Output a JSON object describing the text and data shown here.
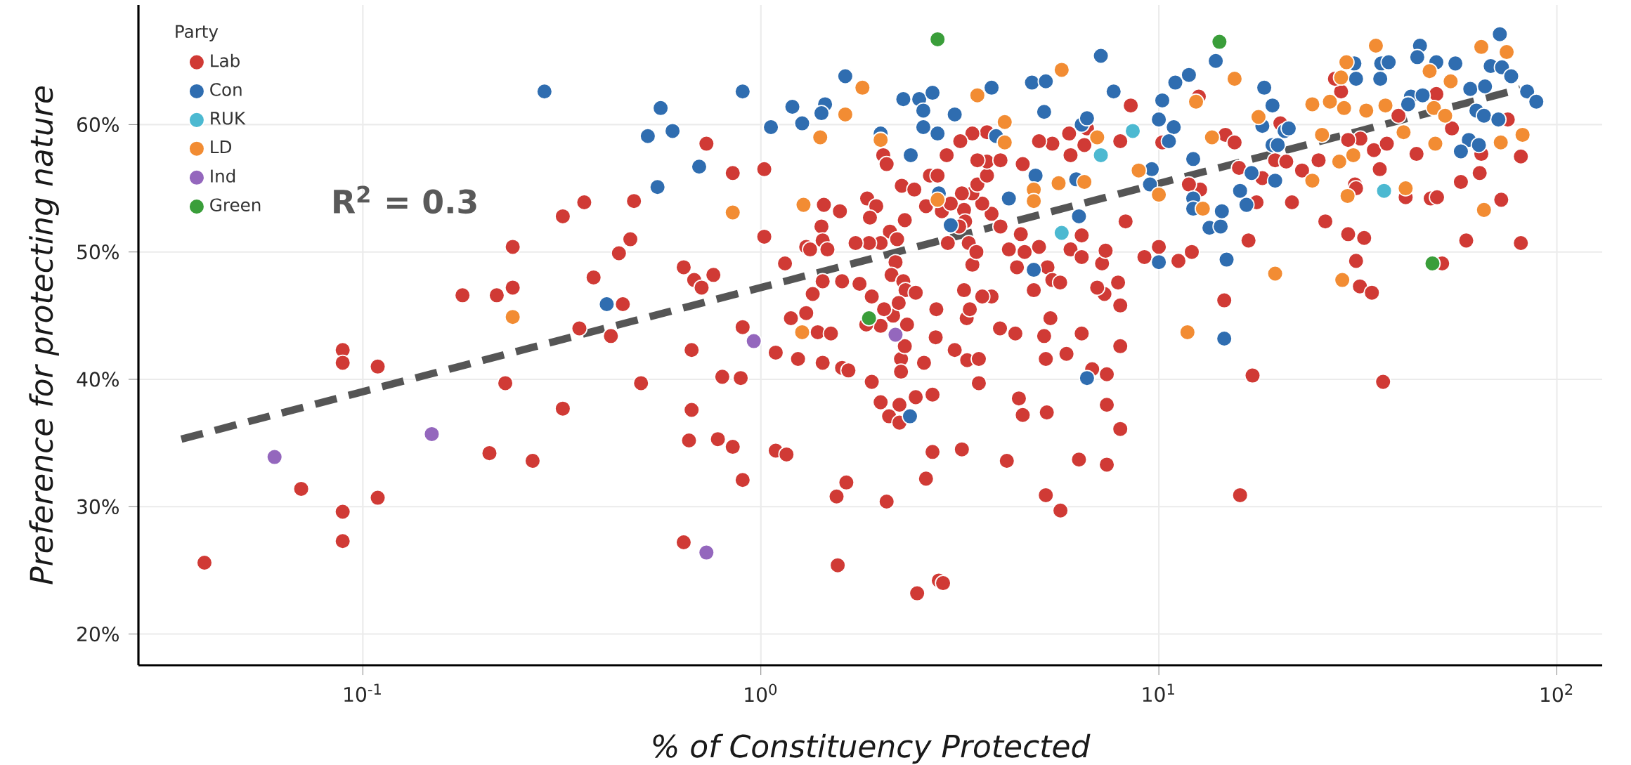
{
  "chart_data": {
    "type": "scatter",
    "xlabel": "% of Constituency Protected",
    "ylabel": "Preference for protecting nature",
    "legend_title": "Party",
    "annotations": [
      "R$^{2}$ = 0.3"
    ],
    "log": "x",
    "grid": true,
    "legend": "top left",
    "marker": "circle",
    "xlim": [
      0.0273,
      130
    ],
    "ylim": [
      17.55,
      69.4
    ],
    "xticks": [
      {
        "value": 0.1,
        "label": "10$^{-1}$"
      },
      {
        "value": 1,
        "label": "10$^{0}$"
      },
      {
        "value": 10,
        "label": "10$^{1}$"
      },
      {
        "value": 100,
        "label": "10$^{2}$"
      }
    ],
    "yticks": [
      {
        "value": 20,
        "label": "20%"
      },
      {
        "value": 30,
        "label": "30%"
      },
      {
        "value": 40,
        "label": "40%"
      },
      {
        "value": 50,
        "label": "50%"
      },
      {
        "value": 60,
        "label": "60%"
      }
    ],
    "series": [
      {
        "name": "Lab",
        "color": "#d03a35",
        "x": [
          0.04,
          0.089,
          0.089,
          0.109,
          0.07,
          0.089,
          0.089,
          0.109,
          0.178,
          0.217,
          0.238,
          0.238,
          0.228,
          0.208,
          0.267,
          0.318,
          0.318,
          0.36,
          0.73,
          0.85,
          1.02,
          0.48,
          0.47,
          0.44,
          0.38,
          0.45,
          0.35,
          0.42,
          0.64,
          0.68,
          0.71,
          0.76,
          1.02,
          1.15,
          0.9,
          0.67,
          0.5,
          0.8,
          0.89,
          0.67,
          0.66,
          0.78,
          0.85,
          0.9,
          1.09,
          1.16,
          0.64,
          1.09,
          1.24,
          1.43,
          1.6,
          1.66,
          1.9,
          2.0,
          2.23,
          2.1,
          2.23,
          2.45,
          2.7,
          2.57,
          2.25,
          2.25,
          2.3,
          2.33,
          2.15,
          2.0,
          1.84,
          1.55,
          1.64,
          2.07,
          1.56,
          2.47,
          2.8,
          2.87,
          2.6,
          2.7,
          3.2,
          4.15,
          5.2,
          5.66,
          6.3,
          7.4,
          4.45,
          4.55,
          5.23,
          5.2,
          5.86,
          6.4,
          6.8,
          7.4,
          7.4,
          8.0,
          8.0,
          8.0,
          7.9,
          7.3,
          7.0,
          7.2,
          7.35,
          6.4,
          6.0,
          6.4,
          5.25,
          5.4,
          5.65,
          4.85,
          4.4,
          4.6,
          5.0,
          4.2,
          4.5,
          4.0,
          3.8,
          3.6,
          3.4,
          3.5,
          3.7,
          3.7,
          4.0,
          4.55,
          6.0,
          6.5,
          5.4,
          5.0,
          5.95,
          8.0,
          6.6,
          3.7,
          3.4,
          3.17,
          3.5,
          2.93,
          2.66,
          2.78,
          2.26,
          2.43,
          2.6,
          2.85,
          3.2,
          3.24,
          3.0,
          2.95,
          3.33,
          3.4,
          3.48,
          3.26,
          3.15,
          2.03,
          2.07,
          1.85,
          1.95,
          1.88,
          2.11,
          2.2,
          2.0,
          1.87,
          2.3,
          2.18,
          2.13,
          2.28,
          2.31,
          2.45,
          2.22,
          2.04,
          1.9,
          1.77,
          1.73,
          1.58,
          1.44,
          1.42,
          1.43,
          1.47,
          1.3,
          1.33,
          1.43,
          1.6,
          1.35,
          1.3,
          1.19,
          1.39,
          1.5,
          2.76,
          2.75,
          3.07,
          3.3,
          3.53,
          3.53,
          3.29,
          3.35,
          3.8,
          3.6,
          3.24,
          3.99,
          4.36,
          5.15,
          5.34,
          8.5,
          10.2,
          12.6,
          14.7,
          15.5,
          15.9,
          18.2,
          19.6,
          20.2,
          20.9,
          22.9,
          28.7,
          27.7,
          32.1,
          29.9,
          31.1,
          31.3,
          34.7,
          35.9,
          37.4,
          40.0,
          44.4,
          49.8,
          48.2,
          50.0,
          41.7,
          54.5,
          57.4,
          64.0,
          64.6,
          72.5,
          75.3,
          81.2,
          81.2,
          59.2,
          51.5,
          26.2,
          29.9,
          32.8,
          31.3,
          32.0,
          34.3,
          36.6,
          21.6,
          25.2,
          16.8,
          14.6,
          17.2,
          16.0,
          12.1,
          11.2,
          10.0,
          9.2,
          8.25,
          12.7,
          11.9,
          17.6
        ],
        "values": [
          25.6,
          42.3,
          41.3,
          41.0,
          31.4,
          29.6,
          27.3,
          30.7,
          46.6,
          46.6,
          47.2,
          50.4,
          39.7,
          34.2,
          33.6,
          52.8,
          37.7,
          53.9,
          58.5,
          56.2,
          56.5,
          54.0,
          51.0,
          49.9,
          48.0,
          45.9,
          44.0,
          43.4,
          48.8,
          47.8,
          47.2,
          48.2,
          51.2,
          49.1,
          44.1,
          42.3,
          39.7,
          40.2,
          40.1,
          37.6,
          35.2,
          35.3,
          34.7,
          32.1,
          34.4,
          34.1,
          27.2,
          42.1,
          41.6,
          41.3,
          40.9,
          40.7,
          39.8,
          38.2,
          38.0,
          37.1,
          36.6,
          38.6,
          38.8,
          41.3,
          41.6,
          40.6,
          42.6,
          44.3,
          45.0,
          44.2,
          44.3,
          30.8,
          31.9,
          30.4,
          25.4,
          23.2,
          24.2,
          24.0,
          32.2,
          34.3,
          34.5,
          33.6,
          30.9,
          29.7,
          33.7,
          33.3,
          38.5,
          37.2,
          37.4,
          41.6,
          42.0,
          43.6,
          40.8,
          40.4,
          38.0,
          36.1,
          42.6,
          45.8,
          47.6,
          46.7,
          47.2,
          49.1,
          50.1,
          51.3,
          50.2,
          49.6,
          48.8,
          47.8,
          47.6,
          47.0,
          48.8,
          50.0,
          50.4,
          50.2,
          51.4,
          52.0,
          53.0,
          53.8,
          54.6,
          55.3,
          56.0,
          57.1,
          57.2,
          56.9,
          57.6,
          58.4,
          58.5,
          58.7,
          59.3,
          58.7,
          59.7,
          59.4,
          59.3,
          58.7,
          57.2,
          57.6,
          56.0,
          56.0,
          55.2,
          54.9,
          53.6,
          53.2,
          54.6,
          53.3,
          53.8,
          50.7,
          50.7,
          49.0,
          50.0,
          52.4,
          52.0,
          57.6,
          56.9,
          54.2,
          53.6,
          52.7,
          51.6,
          51.0,
          50.7,
          50.7,
          52.5,
          49.2,
          48.2,
          47.7,
          47.0,
          46.8,
          46.0,
          45.5,
          46.5,
          47.5,
          50.7,
          53.2,
          53.7,
          52.0,
          50.9,
          50.2,
          50.4,
          50.2,
          47.7,
          47.7,
          46.7,
          45.2,
          44.8,
          43.7,
          43.6,
          45.5,
          43.3,
          42.3,
          41.5,
          41.6,
          39.7,
          44.8,
          45.5,
          46.5,
          46.5,
          47.0,
          44.0,
          43.6,
          43.4,
          44.8,
          61.5,
          58.6,
          62.2,
          59.2,
          58.6,
          56.6,
          55.8,
          57.2,
          60.1,
          57.1,
          56.4,
          62.6,
          63.6,
          58.9,
          58.8,
          55.3,
          55.0,
          58.0,
          56.5,
          58.5,
          60.7,
          57.7,
          62.4,
          54.2,
          54.3,
          54.3,
          59.7,
          55.5,
          56.2,
          57.7,
          54.1,
          60.4,
          57.5,
          50.7,
          50.9,
          49.1,
          52.4,
          51.4,
          51.1,
          49.3,
          47.3,
          46.8,
          39.8,
          53.9,
          57.2,
          50.9,
          46.2,
          40.3,
          30.9,
          50.0,
          49.3,
          50.4,
          49.6,
          52.4,
          54.9,
          55.3,
          53.9
        ]
      },
      {
        "name": "Con",
        "color": "#2f6db0",
        "x": [
          0.286,
          7.15,
          1.63,
          0.9,
          0.56,
          1.2,
          1.45,
          1.42,
          2.28,
          2.5,
          2.7,
          2.56,
          3.8,
          4.8,
          5.2,
          5.15,
          7.7,
          0.52,
          0.6,
          1.06,
          1.27,
          3.07,
          2.56,
          2.78,
          2.0,
          3.9,
          6.4,
          6.6,
          0.7,
          0.55,
          2.38,
          4.2,
          4.9,
          6.2,
          6.3,
          3.0,
          2.8,
          4.85,
          0.41,
          2.37,
          6.6,
          10.2,
          11.0,
          11.9,
          13.9,
          10.0,
          10.9,
          10.6,
          18.4,
          19.3,
          18.2,
          19.3,
          19.9,
          20.7,
          21.2,
          12.2,
          9.6,
          9.5,
          12.2,
          12.2,
          13.4,
          14.3,
          14.4,
          17.1,
          16.0,
          16.6,
          19.6,
          14.8,
          10.0,
          14.6,
          31.0,
          31.3,
          36.2,
          37.8,
          36.0,
          45.3,
          44.6,
          49.8,
          55.6,
          71.9,
          68.2,
          72.8,
          76.8,
          60.6,
          66.0,
          43.0,
          42.3,
          46.0,
          84.2,
          88.8,
          62.8,
          65.6,
          71.3,
          60.1,
          57.4,
          63.7
        ],
        "values": [
          62.6,
          65.4,
          63.8,
          62.6,
          61.3,
          61.4,
          61.6,
          60.9,
          62.0,
          62.0,
          62.5,
          61.1,
          62.9,
          63.3,
          63.4,
          61.0,
          62.6,
          59.1,
          59.5,
          59.8,
          60.1,
          60.8,
          59.8,
          59.3,
          59.3,
          59.1,
          60.0,
          60.5,
          56.7,
          55.1,
          57.6,
          54.2,
          56.0,
          55.7,
          52.8,
          52.1,
          54.6,
          48.6,
          45.9,
          37.1,
          40.1,
          61.9,
          63.3,
          63.9,
          65.0,
          60.4,
          59.8,
          58.7,
          62.9,
          61.5,
          59.9,
          58.4,
          58.4,
          59.5,
          59.7,
          57.3,
          56.5,
          55.3,
          54.2,
          53.4,
          51.9,
          52.0,
          53.2,
          56.2,
          54.8,
          53.7,
          55.6,
          49.4,
          49.2,
          43.2,
          64.8,
          63.6,
          64.8,
          64.9,
          63.6,
          66.2,
          65.3,
          64.9,
          64.8,
          67.1,
          64.6,
          64.5,
          63.8,
          62.8,
          63.0,
          62.2,
          61.6,
          62.3,
          62.6,
          61.8,
          61.1,
          60.7,
          60.4,
          58.8,
          57.9,
          58.4
        ]
      },
      {
        "name": "RUK",
        "color": "#4cb9d1",
        "x": [
          7.15,
          5.7,
          8.6,
          36.8
        ],
        "values": [
          57.6,
          51.5,
          59.5,
          54.8
        ]
      },
      {
        "name": "LD",
        "color": "#f28c33",
        "x": [
          1.8,
          5.7,
          3.5,
          1.63,
          1.41,
          2.0,
          4.1,
          4.1,
          7.0,
          5.6,
          6.5,
          4.85,
          4.85,
          2.78,
          1.28,
          0.85,
          1.27,
          0.238,
          35.1,
          64.6,
          74.8,
          29.6,
          28.7,
          15.5,
          12.4,
          24.3,
          26.9,
          29.2,
          33.2,
          37.1,
          47.9,
          54.1,
          49.1,
          17.8,
          13.6,
          25.7,
          30.8,
          28.4,
          41.2,
          49.5,
          72.3,
          82.0,
          52.4,
          8.9,
          10.0,
          12.9,
          24.3,
          29.8,
          41.7,
          65.6,
          19.6,
          28.9,
          11.8
        ],
        "values": [
          62.9,
          64.3,
          62.3,
          60.8,
          59.0,
          58.8,
          60.2,
          58.6,
          59.0,
          55.4,
          55.5,
          54.9,
          54.0,
          54.1,
          53.7,
          53.1,
          43.7,
          44.9,
          66.2,
          66.1,
          65.7,
          64.9,
          63.7,
          63.6,
          61.8,
          61.6,
          61.8,
          61.3,
          61.1,
          61.5,
          64.2,
          63.4,
          61.3,
          60.6,
          59.0,
          59.2,
          57.6,
          57.1,
          59.4,
          58.5,
          58.6,
          59.2,
          60.7,
          56.4,
          54.5,
          53.4,
          55.6,
          54.4,
          55.0,
          53.3,
          48.3,
          47.8,
          43.7
        ]
      },
      {
        "name": "Ind",
        "color": "#9467bd",
        "x": [
          0.06,
          0.149,
          0.96,
          0.73,
          2.18
        ],
        "values": [
          33.9,
          35.7,
          43.0,
          26.4,
          43.5
        ]
      },
      {
        "name": "Green",
        "color": "#3a9e3a",
        "x": [
          2.78,
          1.87,
          14.2,
          48.7
        ],
        "values": [
          66.7,
          44.8,
          66.5,
          49.1
        ]
      },
      {
        "type": "line",
        "color": "#555555",
        "line_style": "dashed",
        "marker": "none",
        "x": [
          0.035,
          80.9
        ],
        "values": [
          35.3,
          62.8
        ]
      }
    ]
  }
}
